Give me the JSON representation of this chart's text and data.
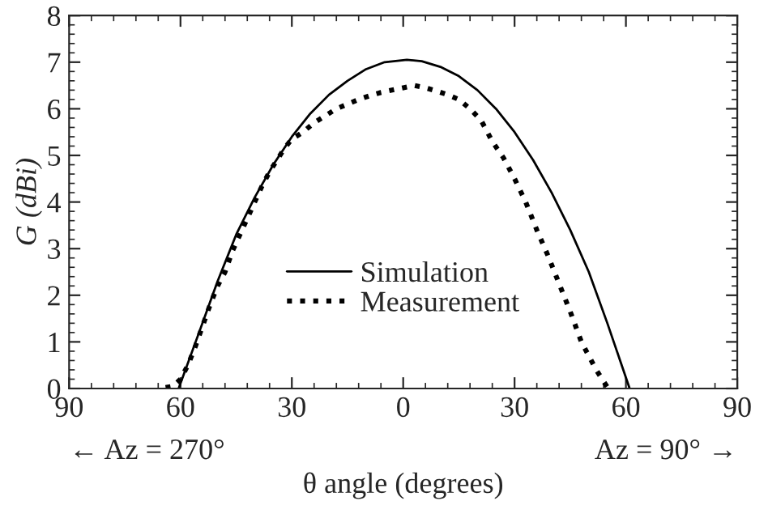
{
  "chart_data": {
    "type": "line",
    "xlabel": "θ angle (degrees)",
    "ylabel": "G (dBi)",
    "xlim": [
      -90,
      90
    ],
    "ylim": [
      0,
      8
    ],
    "xticks": [
      {
        "value": -90,
        "label": "90"
      },
      {
        "value": -60,
        "label": "60"
      },
      {
        "value": -30,
        "label": "30"
      },
      {
        "value": 0,
        "label": "0"
      },
      {
        "value": 30,
        "label": "30"
      },
      {
        "value": 60,
        "label": "60"
      },
      {
        "value": 90,
        "label": "90"
      }
    ],
    "yticks": [
      0,
      1,
      2,
      3,
      4,
      5,
      6,
      7,
      8
    ],
    "grid": false,
    "legend": "bottom",
    "annotations": [
      "← Az = 270°",
      "Az = 90° →"
    ],
    "series": [
      {
        "name": "Simulation",
        "color": "#000000",
        "line_style": "solid",
        "x": [
          -60.5,
          -55,
          -50,
          -45,
          -40,
          -35,
          -30,
          -25,
          -20,
          -15,
          -10,
          -5,
          1,
          5,
          10,
          15,
          20,
          25,
          30,
          35,
          40,
          45,
          50,
          55,
          61
        ],
        "values": [
          0,
          1.2,
          2.3,
          3.3,
          4.1,
          4.8,
          5.4,
          5.9,
          6.3,
          6.6,
          6.85,
          7.0,
          7.05,
          7.02,
          6.9,
          6.7,
          6.4,
          6.0,
          5.5,
          4.9,
          4.2,
          3.4,
          2.5,
          1.4,
          0
        ]
      },
      {
        "name": "Measurement",
        "color": "#000000",
        "line_style": "dotted",
        "x": [
          -64,
          -62,
          -60,
          -58,
          -56,
          -54,
          -52,
          -50,
          -48,
          -46,
          -44,
          -42,
          -40,
          -38,
          -36,
          -34,
          -32,
          -30,
          -27,
          -24,
          -21,
          -18,
          -15,
          -12,
          -9,
          -6,
          -3,
          0,
          3,
          6,
          9,
          12,
          15,
          18,
          21,
          24,
          27,
          30,
          33,
          36,
          39,
          42,
          45,
          48,
          50,
          52,
          54,
          55
        ],
        "values": [
          0.02,
          0.05,
          0.2,
          0.5,
          0.9,
          1.35,
          1.8,
          2.2,
          2.5,
          2.95,
          3.3,
          3.65,
          4.0,
          4.35,
          4.65,
          4.9,
          5.15,
          5.35,
          5.5,
          5.7,
          5.85,
          6.0,
          6.1,
          6.2,
          6.28,
          6.35,
          6.4,
          6.45,
          6.5,
          6.45,
          6.38,
          6.3,
          6.2,
          6.0,
          5.75,
          5.3,
          4.95,
          4.5,
          4.0,
          3.4,
          2.85,
          2.25,
          1.65,
          1.0,
          0.7,
          0.4,
          0.15,
          0.03
        ]
      }
    ]
  }
}
